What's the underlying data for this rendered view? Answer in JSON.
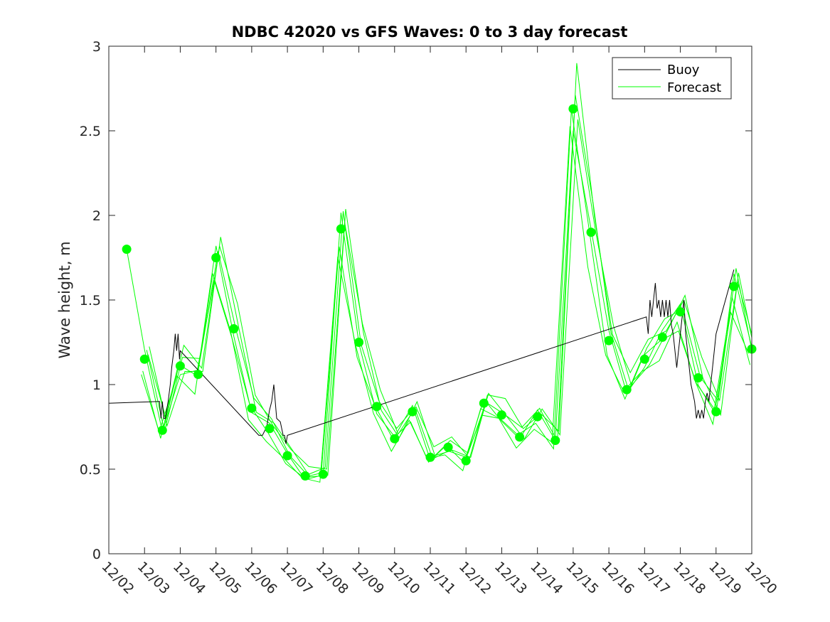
{
  "chart_data": {
    "type": "line",
    "title": "NDBC 42020 vs GFS Waves: 0 to 3 day forecast",
    "xlabel": "",
    "ylabel": "Wave height, m",
    "xlim": [
      0,
      18
    ],
    "ylim": [
      0,
      3
    ],
    "x_tick_labels": [
      "12/02",
      "12/03",
      "12/04",
      "12/05",
      "12/06",
      "12/07",
      "12/08",
      "12/09",
      "12/10",
      "12/11",
      "12/12",
      "12/13",
      "12/14",
      "12/15",
      "12/16",
      "12/17",
      "12/18",
      "12/19",
      "12/20"
    ],
    "y_ticks": [
      0,
      0.5,
      1,
      1.5,
      2,
      2.5,
      3
    ],
    "y_tick_labels": [
      "0",
      "0.5",
      "1",
      "1.5",
      "2",
      "2.5",
      "3"
    ],
    "legend": {
      "location": "top-right",
      "entries": [
        "Buoy",
        "Forecast"
      ]
    },
    "colors": {
      "buoy": "#000000",
      "forecast": "#00ff00"
    },
    "series": [
      {
        "name": "Buoy",
        "x": [
          0,
          1.42,
          1.46,
          1.5,
          1.54,
          1.58,
          1.62,
          1.66,
          1.72,
          1.76,
          1.82,
          1.86,
          1.9,
          1.94,
          1.98,
          2.0,
          4.2,
          4.3,
          4.42,
          4.5,
          4.56,
          4.62,
          4.7,
          4.8,
          4.88,
          4.92,
          4.96,
          5.0,
          15.05,
          15.1,
          15.15,
          15.2,
          15.25,
          15.3,
          15.35,
          15.4,
          15.45,
          15.5,
          15.55,
          15.6,
          15.65,
          15.7,
          15.75,
          15.8,
          15.85,
          15.9,
          15.95,
          16.0,
          16.05,
          16.1,
          16.15,
          16.2,
          16.25,
          16.3,
          16.35,
          16.4,
          16.45,
          16.5,
          16.55,
          16.6,
          16.65,
          16.7,
          16.75,
          16.8,
          16.85,
          16.9,
          16.95,
          17.0,
          17.5
        ],
        "y": [
          0.89,
          0.9,
          0.8,
          0.9,
          0.8,
          0.8,
          0.85,
          0.9,
          1.0,
          1.1,
          1.2,
          1.3,
          1.2,
          1.3,
          1.15,
          1.2,
          0.7,
          0.7,
          0.75,
          0.85,
          0.9,
          1.0,
          0.8,
          0.78,
          0.7,
          0.7,
          0.65,
          0.7,
          1.4,
          1.3,
          1.5,
          1.4,
          1.5,
          1.6,
          1.45,
          1.5,
          1.4,
          1.5,
          1.4,
          1.5,
          1.4,
          1.5,
          1.35,
          1.3,
          1.2,
          1.1,
          1.2,
          1.3,
          1.4,
          1.5,
          1.3,
          1.2,
          1.1,
          1.0,
          0.95,
          0.9,
          0.8,
          0.85,
          0.8,
          0.85,
          0.8,
          0.9,
          0.95,
          0.9,
          1.0,
          1.1,
          1.2,
          1.3,
          1.68
        ]
      },
      {
        "name": "Forecast",
        "x": [
          0.5,
          1.0,
          1.5,
          2.0,
          2.5,
          3.0,
          3.5,
          4.0,
          4.5,
          5.0,
          5.5,
          6.0,
          6.5,
          7.0,
          7.5,
          8.0,
          8.5,
          9.0,
          9.5,
          10.0,
          10.5,
          11.0,
          11.5,
          12.0,
          12.5,
          13.0,
          13.5,
          14.0,
          14.5,
          15.0,
          15.5,
          16.0,
          16.5,
          17.0,
          17.5,
          18.0
        ],
        "y": [
          1.8,
          1.15,
          0.73,
          1.11,
          1.06,
          1.75,
          1.33,
          0.86,
          0.74,
          0.58,
          0.46,
          0.47,
          1.92,
          1.25,
          0.87,
          0.68,
          0.84,
          0.57,
          0.63,
          0.55,
          0.89,
          0.82,
          0.69,
          0.81,
          0.67,
          2.63,
          1.9,
          1.26,
          0.97,
          1.15,
          1.28,
          1.43,
          1.04,
          0.84,
          1.58,
          1.21
        ]
      }
    ]
  }
}
